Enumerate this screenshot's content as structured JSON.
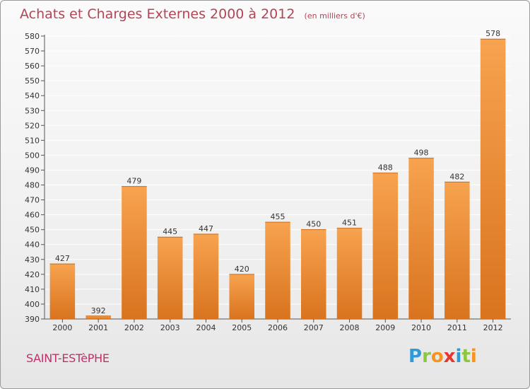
{
  "title": "Achats et Charges Externes 2000 à 2012",
  "unit_note": "(en milliers d'€)",
  "commune": "SAINT-ESTèPHE",
  "logo": {
    "text": "Proxiti",
    "letters": [
      {
        "ch": "P",
        "color": "#2e9bd6"
      },
      {
        "ch": "r",
        "color": "#8dc63f"
      },
      {
        "ch": "o",
        "color": "#f7941d"
      },
      {
        "ch": "x",
        "color": "#e8352e"
      },
      {
        "ch": "i",
        "color": "#2e9bd6"
      },
      {
        "ch": "t",
        "color": "#8dc63f"
      },
      {
        "ch": "i",
        "color": "#f7941d"
      }
    ]
  },
  "colors": {
    "bar_top": "#f7a34f",
    "bar_bottom": "#d9731e",
    "title": "#b04656",
    "commune": "#c0306a",
    "grid": "#ffffff"
  },
  "chart_data": {
    "type": "bar",
    "categories": [
      "2000",
      "2001",
      "2002",
      "2003",
      "2004",
      "2005",
      "2006",
      "2007",
      "2008",
      "2009",
      "2010",
      "2011",
      "2012"
    ],
    "values": [
      427,
      392,
      479,
      445,
      447,
      420,
      455,
      450,
      451,
      488,
      498,
      482,
      578
    ],
    "ylim": [
      390,
      580
    ],
    "ytick_step": 10,
    "grid": true,
    "legend": "none"
  }
}
